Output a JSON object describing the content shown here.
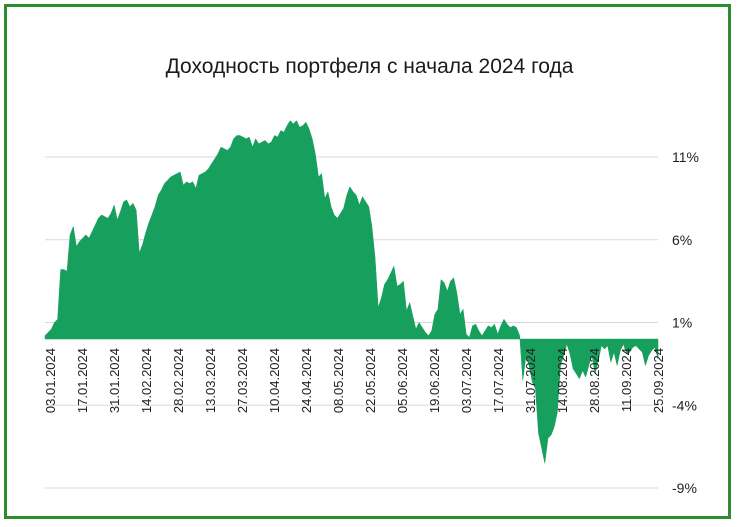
{
  "chart_data": {
    "type": "area",
    "title": "Доходность портфеля с начала 2024 года",
    "xlabel": "",
    "ylabel": "",
    "ylim": [
      -9,
      11
    ],
    "y_ticks": [
      11,
      6,
      1,
      -4,
      -9
    ],
    "y_tick_labels": [
      "11%",
      "6%",
      "1%",
      "-4%",
      "-9%"
    ],
    "y_axis_position": "right",
    "grid": true,
    "legend": "none",
    "fill_color": "#17a05d",
    "x_ticks": [
      "03.01.2024",
      "17.01.2024",
      "31.01.2024",
      "14.02.2024",
      "28.02.2024",
      "13.03.2024",
      "27.03.2024",
      "10.04.2024",
      "24.04.2024",
      "08.05.2024",
      "22.05.2024",
      "05.06.2024",
      "19.06.2024",
      "03.07.2024",
      "17.07.2024",
      "31.07.2024",
      "14.08.2024",
      "28.08.2024",
      "11.09.2024",
      "25.09.2024"
    ],
    "series": [
      {
        "x": [
          0,
          1,
          2,
          3,
          4,
          5,
          6,
          7,
          8,
          9,
          10,
          11,
          12,
          13,
          14,
          15,
          16,
          17,
          18,
          19,
          20,
          21,
          22,
          23,
          24,
          25,
          26,
          27,
          28,
          29,
          30,
          31,
          32,
          33,
          34,
          35,
          36,
          37,
          38,
          39,
          40,
          41,
          42,
          43,
          44,
          45,
          46,
          47,
          48,
          49,
          50,
          51,
          52,
          53,
          54,
          55,
          56,
          57,
          58,
          59,
          60,
          61,
          62,
          63,
          64,
          65,
          66,
          67,
          68,
          69,
          70,
          71,
          72,
          73,
          74,
          75,
          76,
          77,
          78,
          79,
          80,
          81,
          82,
          83,
          84,
          85,
          86,
          87,
          88,
          89,
          90,
          91,
          92,
          93,
          94,
          95,
          96,
          97,
          98,
          99,
          100,
          101,
          102,
          103,
          104,
          105,
          106,
          107,
          108,
          109,
          110,
          111,
          112,
          113,
          114,
          115,
          116,
          117,
          118,
          119,
          120,
          121,
          122,
          123,
          124,
          125,
          126,
          127,
          128,
          129,
          130,
          131,
          132,
          133,
          134,
          135,
          136,
          137,
          138,
          139,
          140,
          141,
          142,
          143,
          144,
          145,
          146,
          147,
          148,
          149,
          150,
          151,
          152,
          153,
          154,
          155,
          156,
          157,
          158,
          159,
          160,
          161,
          162,
          163,
          164,
          165,
          166,
          167,
          168,
          169,
          170,
          171,
          172,
          173,
          174,
          175,
          176,
          177,
          178,
          179,
          180,
          181,
          182,
          183,
          184,
          185,
          186,
          187,
          188,
          189,
          190,
          191,
          192,
          193,
          194,
          195
        ],
        "values": [
          0.2,
          0.4,
          0.6,
          1.0,
          1.2,
          4.2,
          4.2,
          4.1,
          6.3,
          6.8,
          5.6,
          5.9,
          6.1,
          6.3,
          6.1,
          6.5,
          6.9,
          7.3,
          7.5,
          7.4,
          7.3,
          7.6,
          8.1,
          7.2,
          7.7,
          8.3,
          8.4,
          8.0,
          8.2,
          7.8,
          5.2,
          5.7,
          6.4,
          7.0,
          7.5,
          8.0,
          8.7,
          9.0,
          9.4,
          9.6,
          9.8,
          9.9,
          10.0,
          10.1,
          9.3,
          9.5,
          9.4,
          9.5,
          9.1,
          9.9,
          10.0,
          10.1,
          10.3,
          10.6,
          10.9,
          11.2,
          11.6,
          11.5,
          11.4,
          11.6,
          12.1,
          12.3,
          12.3,
          12.2,
          12.1,
          12.2,
          11.6,
          12.1,
          11.8,
          11.9,
          12.0,
          11.8,
          11.9,
          12.3,
          12.2,
          12.6,
          12.5,
          12.9,
          13.2,
          13.0,
          13.2,
          12.8,
          12.9,
          13.1,
          12.7,
          12.1,
          11.2,
          9.8,
          10.0,
          8.5,
          8.9,
          8.0,
          7.5,
          7.3,
          7.6,
          7.9,
          8.7,
          9.2,
          8.9,
          8.7,
          8.1,
          8.6,
          8.3,
          8.0,
          6.8,
          4.9,
          1.9,
          2.5,
          3.3,
          3.6,
          4.0,
          4.4,
          3.2,
          3.3,
          3.5,
          1.7,
          2.2,
          1.4,
          0.6,
          1.0,
          0.7,
          0.4,
          0.2,
          0.5,
          1.5,
          1.8,
          3.6,
          3.4,
          2.9,
          3.5,
          3.7,
          2.8,
          1.5,
          1.8,
          0.3,
          0.1,
          0.8,
          0.9,
          0.5,
          0.2,
          0.5,
          0.8,
          0.7,
          0.9,
          0.3,
          0.8,
          1.2,
          0.9,
          0.7,
          0.8,
          0.7,
          0.2,
          -2.5,
          -1.0,
          -1.6,
          -2.6,
          -3.0,
          -5.7,
          -6.6,
          -7.5,
          -6.0,
          -5.8,
          -5.3,
          -4.4,
          -1.6,
          -1.0,
          -0.3,
          -0.9,
          -1.8,
          -2.1,
          -2.4,
          -1.9,
          -2.3,
          -1.6,
          -1.0,
          -2.1,
          -1.3,
          -0.4,
          -0.6,
          -0.4,
          -1.4,
          -0.8,
          -1.6,
          -0.7,
          -0.3,
          -0.9,
          -0.8,
          -0.5,
          -0.4,
          -0.6,
          -0.8,
          -1.6,
          -1.0,
          -0.7,
          -0.5,
          -1.2
        ]
      }
    ]
  }
}
